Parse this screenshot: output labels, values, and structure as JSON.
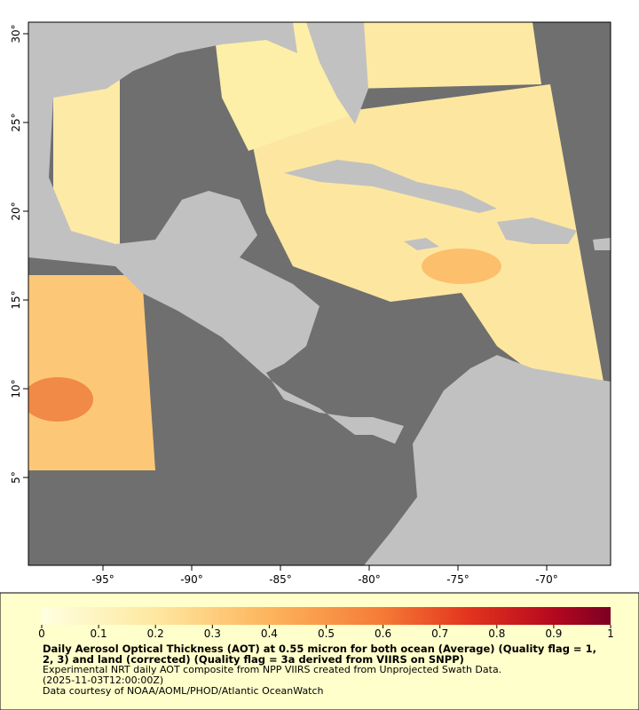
{
  "map": {
    "lon_range": [
      -99.2,
      -66.4
    ],
    "lat_range": [
      0.05,
      30.65
    ],
    "lon_ticks": [
      {
        "value": -95,
        "label": "-95°"
      },
      {
        "value": -90,
        "label": "-90°"
      },
      {
        "value": -85,
        "label": "-85°"
      },
      {
        "value": -80,
        "label": "-80°"
      },
      {
        "value": -75,
        "label": "-75°"
      },
      {
        "value": -70,
        "label": "-70°"
      }
    ],
    "lat_ticks": [
      {
        "value": 5,
        "label": "5°"
      },
      {
        "value": 10,
        "label": "10°"
      },
      {
        "value": 15,
        "label": "15°"
      },
      {
        "value": 20,
        "label": "20°"
      },
      {
        "value": 25,
        "label": "25°"
      },
      {
        "value": 30,
        "label": "30°"
      }
    ]
  },
  "colorbar": {
    "range": [
      0,
      1
    ],
    "ticks": [
      0,
      0.1,
      0.2,
      0.3,
      0.4,
      0.5,
      0.6,
      0.7,
      0.8,
      0.9,
      1
    ]
  },
  "caption": {
    "title": "Daily Aerosol Optical Thickness (AOT) at 0.55 micron for both ocean (Average) (Quality flag = 1, 2, 3) and land (corrected) (Quality flag = 3a derived from VIIRS on SNPP)",
    "lines": [
      "Experimental NRT daily AOT composite from NPP VIIRS created from Unprojected Swath Data.",
      "(2025-11-03T12:00:00Z)",
      "Data courtesy of NOAA/AOML/PHOD/Atlantic OceanWatch"
    ]
  }
}
